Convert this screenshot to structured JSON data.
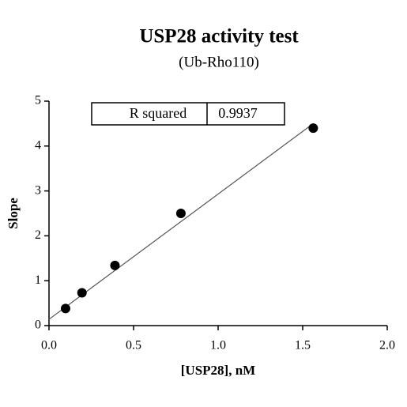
{
  "chart_data": {
    "type": "scatter",
    "title": "USP28 activity test",
    "subtitle": "(Ub-Rho110)",
    "x_label": "[USP28], nM",
    "y_label": "Slope",
    "x": [
      0.098,
      0.195,
      0.39,
      0.78,
      1.5625
    ],
    "values": [
      0.38,
      0.73,
      1.34,
      2.5,
      4.4
    ],
    "color": "#000000",
    "fit": {
      "x": [
        0,
        1.5625
      ],
      "y": [
        0.14,
        4.5
      ],
      "color": "#555555"
    },
    "r_squared_label": "R squared",
    "r_squared": 0.9937,
    "xlim": [
      0,
      2
    ],
    "ylim": [
      0,
      5
    ],
    "xticks": [
      {
        "value": 0,
        "label": "0.0"
      },
      0.5,
      {
        "value": 1,
        "label": "1.0"
      },
      1.5,
      {
        "value": 2,
        "label": "2.0"
      }
    ],
    "yticks": [
      0,
      1,
      2,
      3,
      4,
      5
    ]
  }
}
